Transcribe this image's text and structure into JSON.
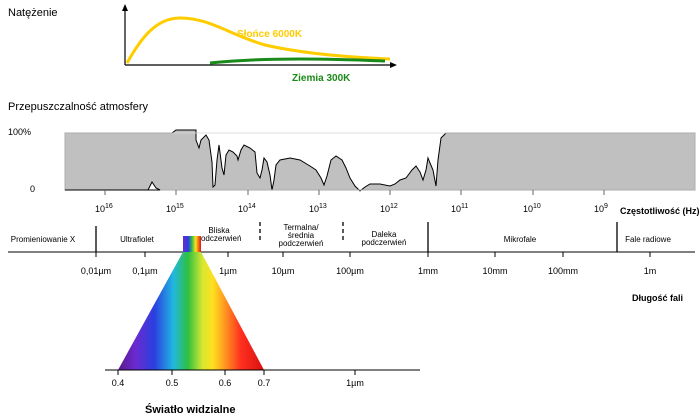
{
  "intensity": {
    "title": "Natężenie",
    "sun_label": "Słońce 6000K",
    "earth_label": "Ziemia 300K",
    "sun_color": "#ffcc00",
    "earth_color": "#1a8a1a"
  },
  "atmosphere": {
    "title": "Przepuszczalność atmosfery",
    "y_top": "100%",
    "y_bottom": "0",
    "fill_color": "#c0c0c0",
    "freq_ticks": [
      {
        "base": "10",
        "exp": "16"
      },
      {
        "base": "10",
        "exp": "15"
      },
      {
        "base": "10",
        "exp": "14"
      },
      {
        "base": "10",
        "exp": "13"
      },
      {
        "base": "10",
        "exp": "12"
      },
      {
        "base": "10",
        "exp": "11"
      },
      {
        "base": "10",
        "exp": "10"
      },
      {
        "base": "10",
        "exp": "9"
      }
    ],
    "freq_axis_label": "Częstotliwość (Hz)"
  },
  "bands": [
    {
      "label": "Promieniowanie X"
    },
    {
      "label": "Ultrafiolet"
    },
    {
      "label": "Bliska\npodczerwień"
    },
    {
      "label": "Termalna/\nśrednia\npodczerwień"
    },
    {
      "label": "Daleka\npodczerwień"
    },
    {
      "label": "Mikrofale"
    },
    {
      "label": "Fale radiowe"
    }
  ],
  "wavelength_ticks": [
    "0,01µm",
    "0,1µm",
    "1µm",
    "10µm",
    "100µm",
    "1mm",
    "10mm",
    "100mm",
    "1m"
  ],
  "wavelength_axis_label": "Długość fali",
  "visible": {
    "ticks": [
      "0.4",
      "0.5",
      "0.6",
      "0.7",
      "1µm"
    ],
    "title": "Światło widzialne"
  }
}
